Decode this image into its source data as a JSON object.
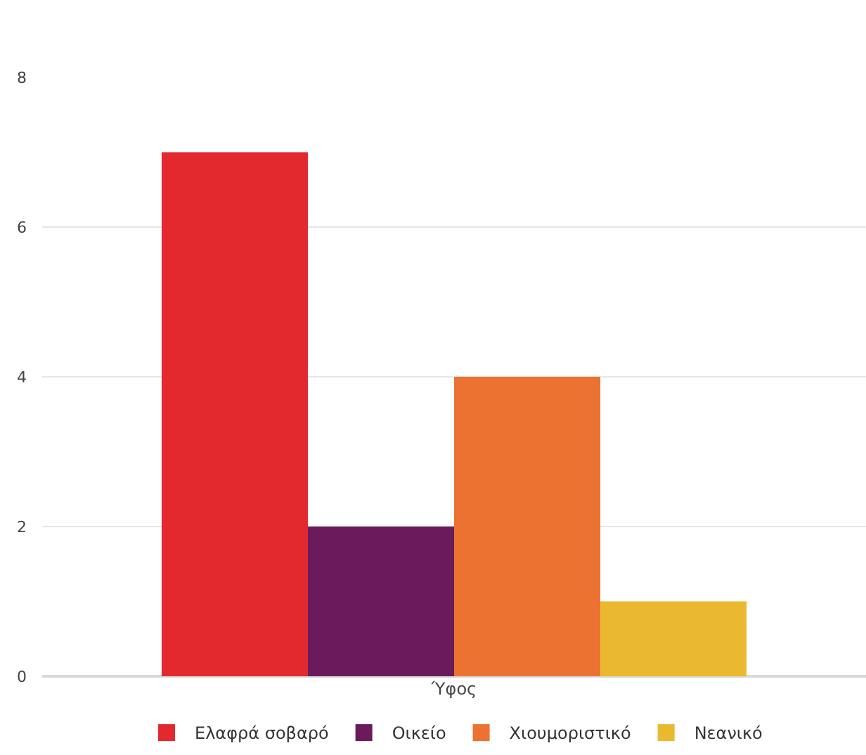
{
  "chart_data": {
    "type": "bar",
    "categories": [
      "Ύφος"
    ],
    "series": [
      {
        "name": "Ελαφρά σοβαρό",
        "color": "#e3292e",
        "values": [
          7
        ]
      },
      {
        "name": "Οικείο",
        "color": "#6b1a5c",
        "values": [
          2
        ]
      },
      {
        "name": "Χιουμοριστικό",
        "color": "#ec7232",
        "values": [
          4
        ]
      },
      {
        "name": "Νεανικό",
        "color": "#eab92f",
        "values": [
          1
        ]
      }
    ],
    "ylim": [
      0,
      8
    ],
    "yticks": [
      0,
      2,
      4,
      6,
      8
    ],
    "grid": "y",
    "legend": "bottom"
  }
}
